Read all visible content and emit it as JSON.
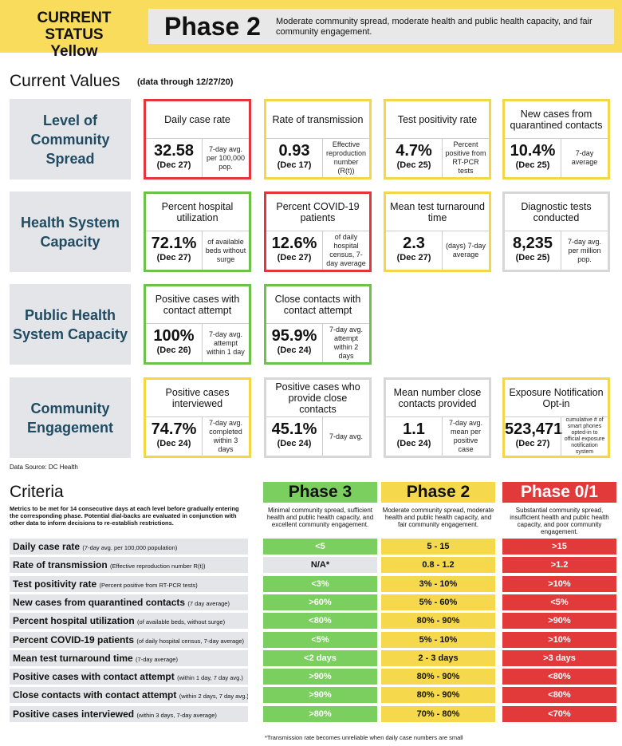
{
  "header": {
    "status_line1": "CURRENT STATUS",
    "status_line2": "Yellow",
    "phase": "Phase 2",
    "description": "Moderate community spread, moderate health and public health capacity, and fair community engagement."
  },
  "current_values": {
    "title": "Current Values",
    "subtitle": "(data through 12/27/20)"
  },
  "row_labels": [
    "Level of Community Spread",
    "Health System Capacity",
    "Public Health System Capacity",
    "Community Engagement"
  ],
  "cards": [
    {
      "title": "Daily case rate",
      "value": "32.58",
      "date": "(Dec 27)",
      "note": "7-day avg. per 100,000 pop.",
      "status": "red"
    },
    {
      "title": "Rate of transmission",
      "value": "0.93",
      "date": "(Dec 17)",
      "note": "Effective reproduction number (R(t))",
      "status": "yellow"
    },
    {
      "title": "Test positivity rate",
      "value": "4.7%",
      "date": "(Dec 25)",
      "note": "Percent positive from RT-PCR tests",
      "status": "yellow"
    },
    {
      "title": "New cases from quarantined contacts",
      "value": "10.4%",
      "date": "(Dec 25)",
      "note": "7-day average",
      "status": "yellow"
    },
    {
      "title": "Percent hospital utilization",
      "value": "72.1%",
      "date": "(Dec 27)",
      "note": "of available beds without surge",
      "status": "green"
    },
    {
      "title": "Percent COVID-19 patients",
      "value": "12.6%",
      "date": "(Dec 27)",
      "note": "of daily hospital census, 7-day average",
      "status": "red"
    },
    {
      "title": "Mean test turnaround time",
      "value": "2.3",
      "date": "(Dec 27)",
      "note": "(days) 7-day average",
      "status": "yellow"
    },
    {
      "title": "Diagnostic tests conducted",
      "value": "8,235",
      "date": "(Dec 25)",
      "note": "7-day avg. per million pop.",
      "status": "grey"
    },
    {
      "title": "Positive cases with contact attempt",
      "value": "100%",
      "date": "(Dec 26)",
      "note": "7-day avg. attempt within 1 day",
      "status": "green"
    },
    {
      "title": "Close contacts with contact attempt",
      "value": "95.9%",
      "date": "(Dec 24)",
      "note": "7-day avg. attempt within 2 days",
      "status": "green"
    },
    {
      "title": "Positive cases interviewed",
      "value": "74.7%",
      "date": "(Dec 24)",
      "note": "7-day avg. completed within 3 days",
      "status": "yellow"
    },
    {
      "title": "Positive cases who provide close contacts",
      "value": "45.1%",
      "date": "(Dec 24)",
      "note": "7-day avg.",
      "status": "grey"
    },
    {
      "title": "Mean number close contacts provided",
      "value": "1.1",
      "date": "(Dec 24)",
      "note": "7-day avg. mean per positive case",
      "status": "grey"
    },
    {
      "title": "Exposure Notification Opt-in",
      "value": "523,471",
      "date": "(Dec 27)",
      "note": "cumulative # of smart phones opted-in to official exposure notification system",
      "status": "yellow"
    }
  ],
  "source": "Data Source: DC Health",
  "criteria": {
    "title": "Criteria",
    "description": "Metrics to be met for 14 consecutive days at each level before gradually entering the corresponding phase. Potential dial-backs are evaluated in conjunction with other data to inform decisions to re-establish restrictions.",
    "phases": [
      {
        "name": "Phase 3",
        "description": "Minimal community spread, sufficient health and public health capacity, and excellent community engagement.",
        "color": "#7bcf5f"
      },
      {
        "name": "Phase 2",
        "description": "Moderate community spread, moderate health and public health capacity, and fair community engagement.",
        "color": "#f5d84c"
      },
      {
        "name": "Phase 0/1",
        "description": "Substantial community spread, insufficient health and public health capacity, and poor community engagement.",
        "color": "#e23a3a"
      }
    ],
    "rows": [
      {
        "metric": "Daily case rate",
        "note": "(7-day avg. per 100,000 population)",
        "p3": "<5",
        "p2": "5 - 15",
        "p1": ">15"
      },
      {
        "metric": "Rate of transmission",
        "note": "(Effective reproduction number R(t))",
        "p3": "N/A*",
        "p2": "0.8 - 1.2",
        "p1": ">1.2"
      },
      {
        "metric": "Test positivity rate",
        "note": "(Percent positive from RT-PCR tests)",
        "p3": "<3%",
        "p2": "3% - 10%",
        "p1": ">10%"
      },
      {
        "metric": "New cases from quarantined contacts",
        "note": "(7 day average)",
        "p3": ">60%",
        "p2": "5% - 60%",
        "p1": "<5%"
      },
      {
        "metric": "Percent hospital utilization",
        "note": "(of available beds, without surge)",
        "p3": "<80%",
        "p2": "80% - 90%",
        "p1": ">90%"
      },
      {
        "metric": "Percent COVID-19 patients",
        "note": "(of daily hospital census, 7-day average)",
        "p3": "<5%",
        "p2": "5% - 10%",
        "p1": ">10%"
      },
      {
        "metric": "Mean test turnaround time",
        "note": "(7-day average)",
        "p3": "<2 days",
        "p2": "2 - 3 days",
        "p1": ">3 days"
      },
      {
        "metric": "Positive cases with contact attempt",
        "note": "(within 1 day, 7 day avg.)",
        "p3": ">90%",
        "p2": "80% - 90%",
        "p1": "<80%"
      },
      {
        "metric": "Close contacts with contact attempt",
        "note": "(within 2 days, 7 day avg.)",
        "p3": ">90%",
        "p2": "80% - 90%",
        "p1": "<80%"
      },
      {
        "metric": "Positive cases interviewed",
        "note": "(within 3 days, 7-day average)",
        "p3": ">80%",
        "p2": "70% - 80%",
        "p1": "<70%"
      }
    ],
    "footnote": "*Transmission rate becomes unreliable when daily case numbers are small"
  }
}
